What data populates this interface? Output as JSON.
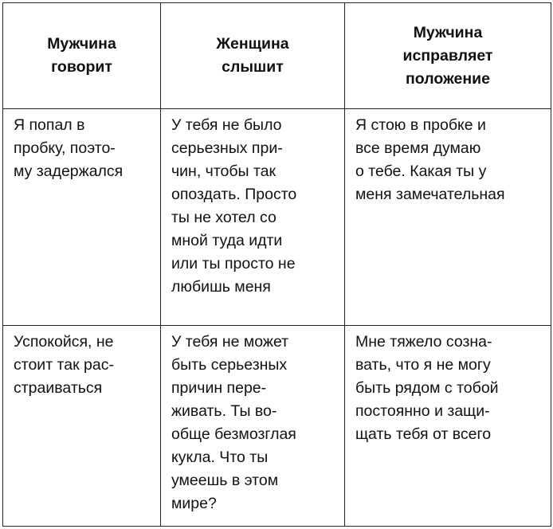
{
  "headers": [
    "Мужчина\nговорит",
    "Женщина\nслышит",
    "Мужчина\nисправляет\nположение"
  ],
  "rows": [
    [
      "Я попал в\nпробку, поэто-\nму задержался",
      "У тебя не было\nсерьезных при-\nчин, чтобы так\nопоздать. Просто\nты не хотел со\nмной туда идти\nили ты просто не\nлюбишь меня",
      "Я стою в пробке и\nвсе время думаю\nо тебе. Какая ты у\nменя замечательная"
    ],
    [
      "Успокойся, не\nстоит так рас-\nстраиваться",
      "У тебя не может\nбыть серьезных\nпричин пере-\nживать. Ты во-\nобще безмозглая\nкукла. Что ты\nумеешь в этом\nмире?",
      "Мне тяжело созна-\nвать, что я не могу\nбыть рядом с тобой\nпостоянно и защи-\nщать тебя от всего"
    ]
  ]
}
